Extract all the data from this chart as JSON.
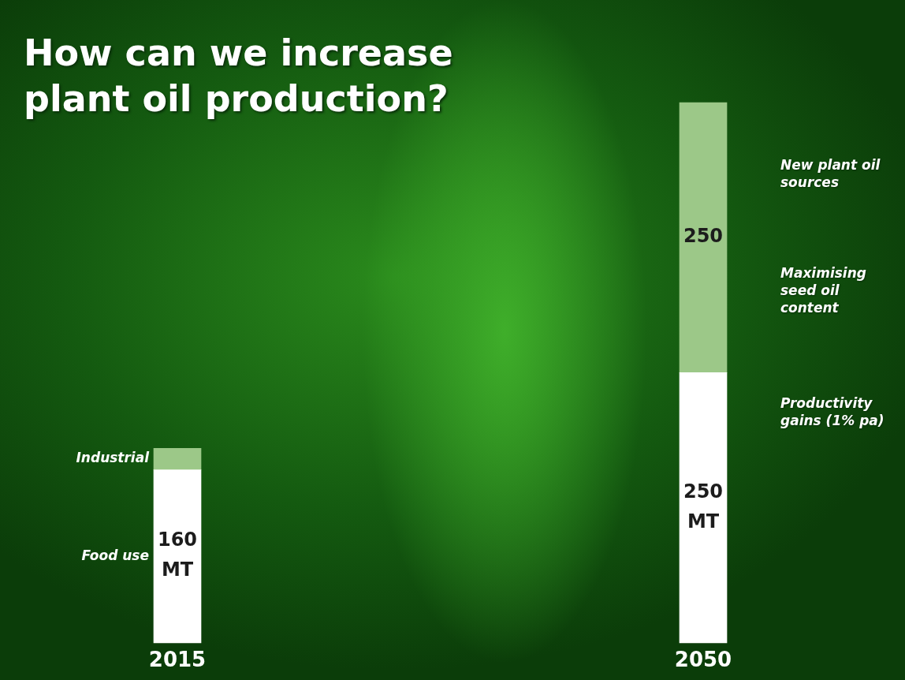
{
  "chart_data": {
    "type": "bar",
    "title": "How can we increase plant oil production?",
    "categories": [
      "2015",
      "2050"
    ],
    "stacked": true,
    "legend": false,
    "grid": false,
    "tick_labels": "x",
    "ylim": [
      0,
      500
    ],
    "series": [
      {
        "name": "Food use",
        "color": "#ffffff",
        "values": [
          160,
          250
        ],
        "value_labels": [
          "160 MT",
          "250 MT"
        ]
      },
      {
        "name": "Industrial",
        "color": "#9cc888",
        "values": [
          20,
          250
        ],
        "value_labels": [
          null,
          "250"
        ]
      }
    ],
    "annotations": [
      "New plant oil sources",
      "Maximising seed oil content",
      "Productivity gains (1% pa)"
    ]
  }
}
